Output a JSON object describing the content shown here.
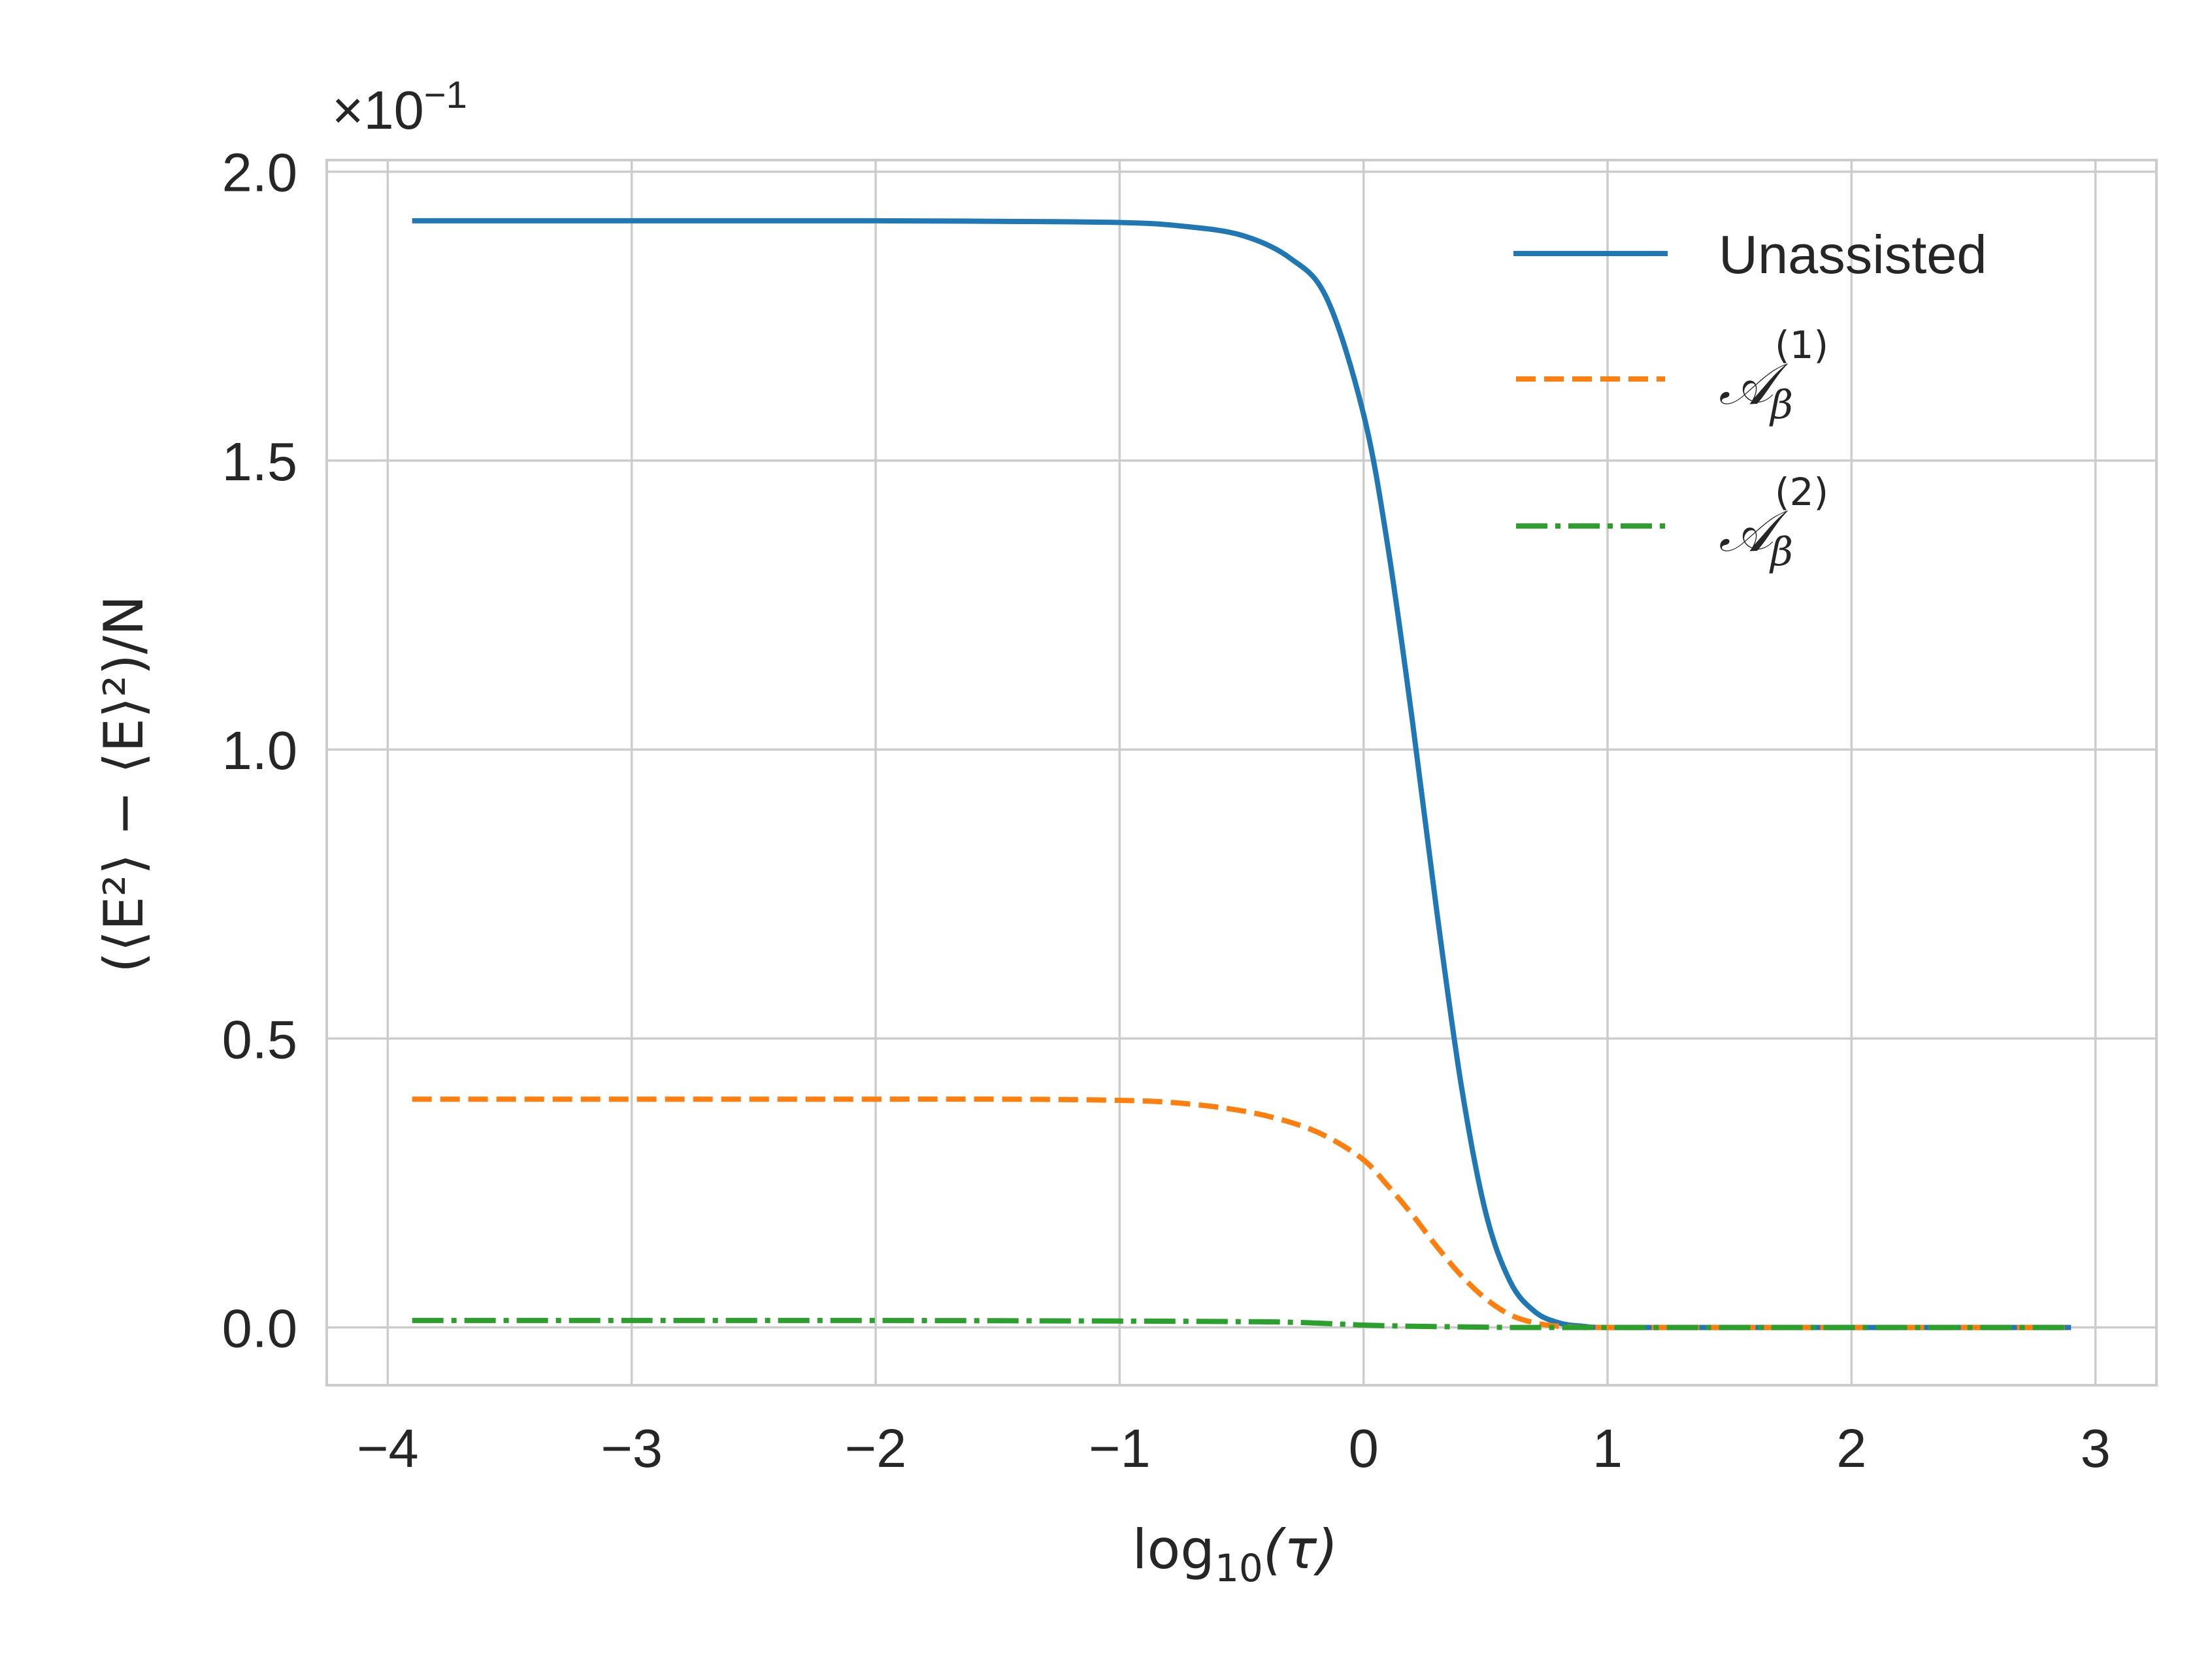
{
  "chart_data": {
    "type": "line",
    "xlabel": "log10(τ)",
    "xlabel_parts": {
      "base": "log",
      "sub": "10",
      "arg": "(τ)"
    },
    "ylabel": "(⟨E²⟩ − ⟨E⟩²)/N",
    "y_offset_text": {
      "base": "×10",
      "exp": "−1"
    },
    "xlim": [
      -4.25,
      3.25
    ],
    "ylim": [
      -0.1,
      2.02
    ],
    "x_ticks": [
      -4,
      -3,
      -2,
      -1,
      0,
      1,
      2,
      3
    ],
    "x_tick_labels": [
      "−4",
      "−3",
      "−2",
      "−1",
      "0",
      "1",
      "2",
      "3"
    ],
    "y_ticks": [
      0.0,
      0.5,
      1.0,
      1.5,
      2.0
    ],
    "y_tick_labels": [
      "0.0",
      "0.5",
      "1.0",
      "1.5",
      "2.0"
    ],
    "grid": true,
    "legend_position": "top-right",
    "series": [
      {
        "name": "Unassisted",
        "color": "#1f77b4",
        "style": "solid",
        "x": [
          -3.9,
          -3.0,
          -2.0,
          -1.5,
          -1.0,
          -0.75,
          -0.5,
          -0.3,
          -0.15,
          0.0,
          0.1,
          0.2,
          0.3,
          0.4,
          0.5,
          0.6,
          0.7,
          0.8,
          0.9,
          1.0,
          1.5,
          2.0,
          2.5,
          2.9
        ],
        "y": [
          1.915,
          1.915,
          1.915,
          1.914,
          1.912,
          1.906,
          1.89,
          1.85,
          1.78,
          1.58,
          1.35,
          1.05,
          0.72,
          0.42,
          0.2,
          0.08,
          0.028,
          0.008,
          0.002,
          0.0,
          0.0,
          0.0,
          0.0,
          0.0
        ]
      },
      {
        "name": "A_β^(1)",
        "label_parts": {
          "base": "𝒜",
          "sub": "β",
          "sup": "(1)"
        },
        "color": "#ff7f0e",
        "style": "dashed",
        "x": [
          -3.9,
          -3.0,
          -2.0,
          -1.5,
          -1.0,
          -0.75,
          -0.5,
          -0.3,
          -0.15,
          0.0,
          0.1,
          0.2,
          0.3,
          0.4,
          0.5,
          0.6,
          0.7,
          0.8,
          0.9,
          1.0,
          1.5,
          2.0,
          2.5,
          2.9
        ],
        "y": [
          0.395,
          0.395,
          0.395,
          0.395,
          0.393,
          0.388,
          0.375,
          0.355,
          0.33,
          0.29,
          0.245,
          0.195,
          0.14,
          0.09,
          0.05,
          0.022,
          0.008,
          0.002,
          0.0,
          0.0,
          0.0,
          0.0,
          0.0,
          0.0
        ]
      },
      {
        "name": "A_β^(2)",
        "label_parts": {
          "base": "𝒜",
          "sub": "β",
          "sup": "(2)"
        },
        "color": "#2ca02c",
        "style": "dashdot",
        "x": [
          -3.9,
          -3.0,
          -2.0,
          -1.0,
          -0.5,
          -0.3,
          -0.1,
          0.0,
          0.2,
          0.4,
          0.6,
          0.8,
          1.0,
          1.5,
          2.0,
          2.5,
          2.9
        ],
        "y": [
          0.012,
          0.012,
          0.012,
          0.011,
          0.01,
          0.009,
          0.006,
          0.004,
          0.002,
          0.001,
          0.0,
          0.0,
          0.0,
          0.0,
          0.0,
          0.0,
          0.0
        ]
      }
    ]
  }
}
